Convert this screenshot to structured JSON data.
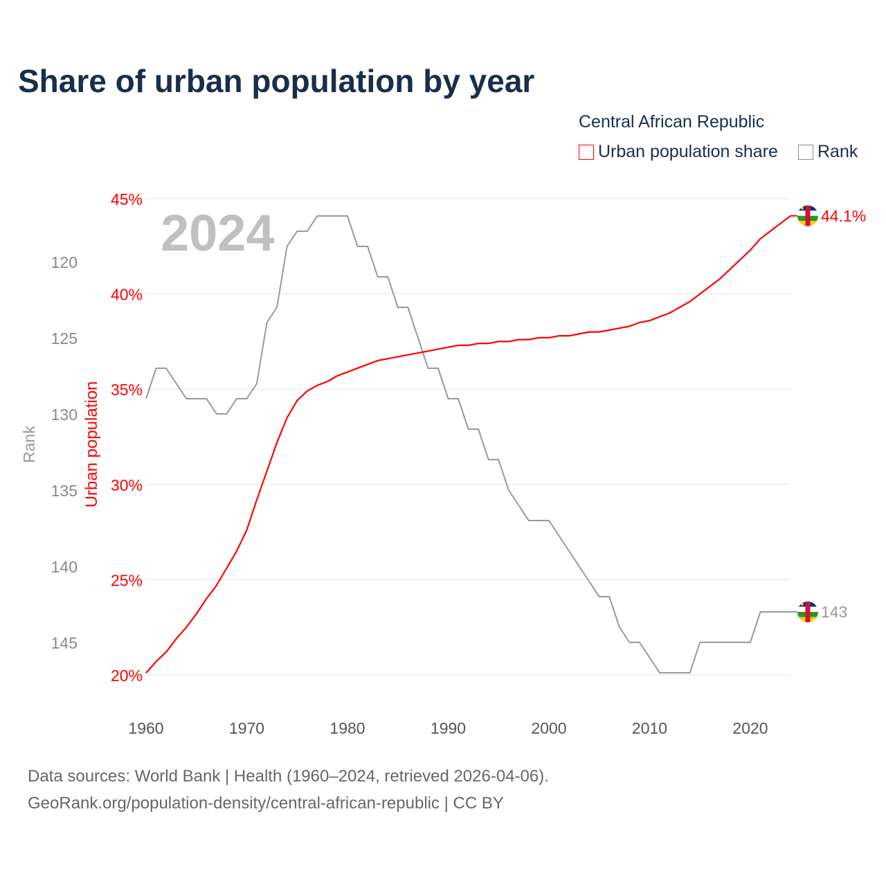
{
  "title": "Share of urban population by year",
  "legend": {
    "country": "Central African Republic",
    "series1": "Urban population share",
    "series2": "Rank"
  },
  "footer": {
    "line1": "Data sources: World Bank | Health (1960–2024, retrieved 2026-04-06).",
    "line2": "GeoRank.org/population-density/central-african-republic | CC BY"
  },
  "colors": {
    "urban": "#ff0000",
    "rank": "#999999",
    "title": "#1a2e4c"
  },
  "chart_data": {
    "type": "line",
    "title": "Share of urban population by year",
    "year_label": "2024",
    "x": [
      1960,
      1961,
      1962,
      1963,
      1964,
      1965,
      1966,
      1967,
      1968,
      1969,
      1970,
      1971,
      1972,
      1973,
      1974,
      1975,
      1976,
      1977,
      1978,
      1979,
      1980,
      1981,
      1982,
      1983,
      1984,
      1985,
      1986,
      1987,
      1988,
      1989,
      1990,
      1991,
      1992,
      1993,
      1994,
      1995,
      1996,
      1997,
      1998,
      1999,
      2000,
      2001,
      2002,
      2003,
      2004,
      2005,
      2006,
      2007,
      2008,
      2009,
      2010,
      2011,
      2012,
      2013,
      2014,
      2015,
      2016,
      2017,
      2018,
      2019,
      2020,
      2021,
      2022,
      2023,
      2024
    ],
    "series": [
      {
        "name": "Urban population share",
        "axis": "left",
        "values": [
          20.1,
          20.7,
          21.2,
          21.9,
          22.5,
          23.2,
          24.0,
          24.7,
          25.6,
          26.5,
          27.6,
          29.2,
          30.7,
          32.2,
          33.5,
          34.4,
          34.9,
          35.2,
          35.4,
          35.7,
          35.9,
          36.1,
          36.3,
          36.5,
          36.6,
          36.7,
          36.8,
          36.9,
          37.0,
          37.1,
          37.2,
          37.3,
          37.3,
          37.4,
          37.4,
          37.5,
          37.5,
          37.6,
          37.6,
          37.7,
          37.7,
          37.8,
          37.8,
          37.9,
          38.0,
          38.0,
          38.1,
          38.2,
          38.3,
          38.5,
          38.6,
          38.8,
          39.0,
          39.3,
          39.6,
          40.0,
          40.4,
          40.8,
          41.3,
          41.8,
          42.3,
          42.9,
          43.3,
          43.7,
          44.1
        ],
        "end_label": "44.1%"
      },
      {
        "name": "Rank",
        "axis": "right-inverted",
        "values": [
          129,
          127,
          127,
          128,
          129,
          129,
          129,
          130,
          130,
          129,
          129,
          128,
          124,
          123,
          119,
          118,
          118,
          117,
          117,
          117,
          117,
          119,
          119,
          121,
          121,
          123,
          123,
          125,
          127,
          127,
          129,
          129,
          131,
          131,
          133,
          133,
          135,
          136,
          137,
          137,
          137,
          138,
          139,
          140,
          141,
          142,
          142,
          144,
          145,
          145,
          146,
          147,
          147,
          147,
          147,
          145,
          145,
          145,
          145,
          145,
          145,
          143,
          143,
          143,
          143
        ],
        "end_label": "143"
      }
    ],
    "xticks": [
      "1960",
      "1970",
      "1980",
      "1990",
      "2000",
      "2010",
      "2020"
    ],
    "ylabel": "Urban population",
    "yticks": [
      "20%",
      "25%",
      "30%",
      "35%",
      "40%",
      "45%"
    ],
    "ylim": [
      20,
      45
    ],
    "y2label": "Rank",
    "y2ticks": [
      "120",
      "125",
      "130",
      "135",
      "140",
      "145"
    ]
  }
}
